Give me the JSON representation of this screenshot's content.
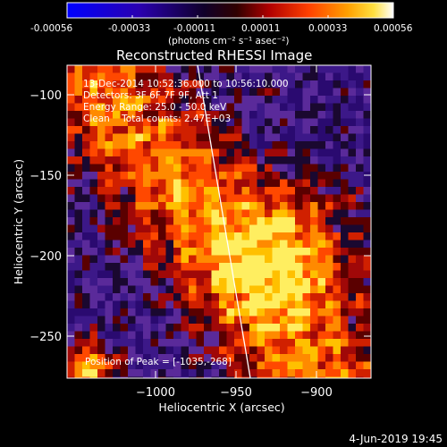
{
  "colorbar": {
    "tick_labels": [
      "-0.00056",
      "-0.00033",
      "-0.00011",
      "0.00011",
      "0.00033",
      "0.00056"
    ],
    "units": "(photons cm⁻² s⁻¹ asec⁻²)",
    "colors": [
      "#0000ff",
      "#3a00a0",
      "#000000",
      "#a00000",
      "#ff3000",
      "#ff9000",
      "#ffe000",
      "#ffffff"
    ]
  },
  "image": {
    "title": "Reconstructed RHESSI Image",
    "info_lines": [
      "13-Dec-2014 10:52:36.000 to 10:56:10.000",
      "Detectors: 3F 6F 7F 9F, Att 1",
      "Energy Range: 25.0 - 50.0 keV",
      "Clean    Total counts: 2.47E+03"
    ],
    "peak_label": "Position of Peak = [-1035,-268]",
    "x_label": "Heliocentric X (arcsec)",
    "y_label": "Heliocentric Y (arcsec)",
    "x_ticks": [
      "−1000",
      "−950",
      "−900"
    ],
    "y_ticks": [
      "−100",
      "−150",
      "−200",
      "−250"
    ]
  },
  "footer": {
    "timestamp": "4-Jun-2019 19:45"
  }
}
